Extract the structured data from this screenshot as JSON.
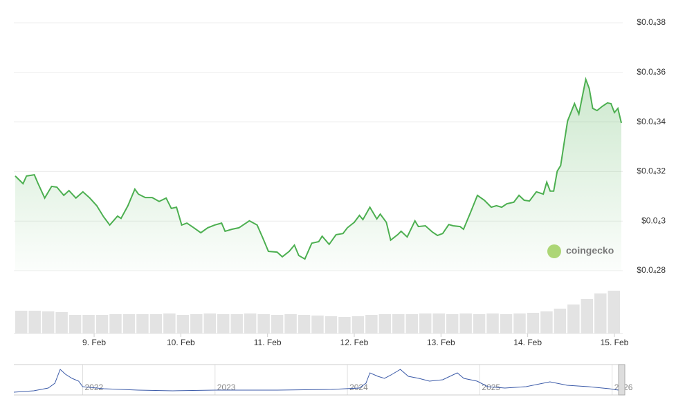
{
  "chart_data": [
    {
      "type": "area",
      "x": [
        8.09,
        8.18,
        8.22,
        8.31,
        8.35,
        8.43,
        8.51,
        8.57,
        8.65,
        8.71,
        8.79,
        8.87,
        8.95,
        9.03,
        9.11,
        9.18,
        9.27,
        9.31,
        9.39,
        9.47,
        9.51,
        9.59,
        9.67,
        9.75,
        9.83,
        9.89,
        9.95,
        10.01,
        10.07,
        10.15,
        10.23,
        10.31,
        10.39,
        10.47,
        10.51,
        10.59,
        10.67,
        10.79,
        10.88,
        10.95,
        11.01,
        11.11,
        11.17,
        11.25,
        11.31,
        11.36,
        11.43,
        11.51,
        11.59,
        11.63,
        11.71,
        11.79,
        11.87,
        11.92,
        12.0,
        12.06,
        12.1,
        12.18,
        12.26,
        12.3,
        12.37,
        12.42,
        12.5,
        12.54,
        12.61,
        12.7,
        12.74,
        12.82,
        12.9,
        12.96,
        13.02,
        13.09,
        13.14,
        13.22,
        13.26,
        13.34,
        13.42,
        13.5,
        13.58,
        13.64,
        13.7,
        13.76,
        13.84,
        13.9,
        13.96,
        14.02,
        14.1,
        14.18,
        14.22,
        14.26,
        14.3,
        14.34,
        14.38,
        14.42,
        14.46,
        14.54,
        14.59,
        14.63,
        14.67,
        14.71,
        14.75,
        14.8,
        14.86,
        14.92,
        14.96,
        15.0,
        15.04,
        15.08
      ],
      "series": [
        {
          "color": "#4caf50",
          "values": [
            3.182e-05,
            3.151e-05,
            3.182e-05,
            3.187e-05,
            3.154e-05,
            3.093e-05,
            3.14e-05,
            3.137e-05,
            3.104e-05,
            3.123e-05,
            3.093e-05,
            3.118e-05,
            3.093e-05,
            3.062e-05,
            3.017e-05,
            2.984e-05,
            3.02e-05,
            3.011e-05,
            3.062e-05,
            3.129e-05,
            3.109e-05,
            3.095e-05,
            3.095e-05,
            3.079e-05,
            3.093e-05,
            3.051e-05,
            3.056e-05,
            2.984e-05,
            2.992e-05,
            2.973e-05,
            2.953e-05,
            2.973e-05,
            2.984e-05,
            2.992e-05,
            2.959e-05,
            2.967e-05,
            2.973e-05,
            3.001e-05,
            2.984e-05,
            2.928e-05,
            2.878e-05,
            2.875e-05,
            2.856e-05,
            2.878e-05,
            2.903e-05,
            2.861e-05,
            2.847e-05,
            2.911e-05,
            2.917e-05,
            2.939e-05,
            2.906e-05,
            2.945e-05,
            2.95e-05,
            2.973e-05,
            2.995e-05,
            3.023e-05,
            3.006e-05,
            3.056e-05,
            3.009e-05,
            3.028e-05,
            2.995e-05,
            2.923e-05,
            2.945e-05,
            2.959e-05,
            2.936e-05,
            3.001e-05,
            2.978e-05,
            2.981e-05,
            2.956e-05,
            2.942e-05,
            2.95e-05,
            2.986e-05,
            2.981e-05,
            2.978e-05,
            2.967e-05,
            3.034e-05,
            3.104e-05,
            3.084e-05,
            3.056e-05,
            3.062e-05,
            3.056e-05,
            3.07e-05,
            3.076e-05,
            3.104e-05,
            3.084e-05,
            3.081e-05,
            3.118e-05,
            3.109e-05,
            3.157e-05,
            3.121e-05,
            3.121e-05,
            3.201e-05,
            3.224e-05,
            3.315e-05,
            3.404e-05,
            3.474e-05,
            3.432e-05,
            3.502e-05,
            3.572e-05,
            3.535e-05,
            3.455e-05,
            3.446e-05,
            3.463e-05,
            3.477e-05,
            3.474e-05,
            3.438e-05,
            3.455e-05,
            3.396e-05
          ]
        }
      ],
      "xlim": [
        8.09,
        15.08
      ],
      "xticks": [
        {
          "value": 9,
          "label": "9. Feb"
        },
        {
          "value": 10,
          "label": "10. Feb"
        },
        {
          "value": 11,
          "label": "11. Feb"
        },
        {
          "value": 12,
          "label": "12. Feb"
        },
        {
          "value": 13,
          "label": "13. Feb"
        },
        {
          "value": 14,
          "label": "14. Feb"
        },
        {
          "value": 15,
          "label": "15. Feb"
        }
      ],
      "ylim": [
        2.79e-05,
        3.8e-05
      ],
      "yticks": [
        {
          "value": 2.8e-05,
          "label": "$0.0₄28"
        },
        {
          "value": 3e-05,
          "label": "$0.0₄3"
        },
        {
          "value": 3.2e-05,
          "label": "$0.0₄32"
        },
        {
          "value": 3.4e-05,
          "label": "$0.0₄34"
        },
        {
          "value": 3.6e-05,
          "label": "$0.0₄36"
        },
        {
          "value": 3.8e-05,
          "label": "$0.0₄38"
        }
      ],
      "grid": true,
      "watermark": "coingecko",
      "volume": {
        "color": "#e3e3e3",
        "ylim": [
          0,
          80
        ],
        "values": [
          33,
          33,
          32,
          31,
          27,
          27,
          27,
          28,
          28,
          28,
          28,
          29,
          27,
          28,
          29,
          28,
          28,
          29,
          28,
          27,
          28,
          27,
          26,
          25,
          24,
          25,
          27,
          28,
          28,
          28,
          29,
          29,
          28,
          29,
          28,
          29,
          28,
          29,
          30,
          32,
          36,
          42,
          50,
          58,
          62
        ]
      }
    },
    {
      "type": "line",
      "x": [
        2021.48,
        2021.63,
        2021.74,
        2021.79,
        2021.83,
        2021.87,
        2021.92,
        2021.97,
        2022.0,
        2022.16,
        2022.42,
        2022.68,
        2023.0,
        2023.47,
        2023.88,
        2024.09,
        2024.14,
        2024.17,
        2024.23,
        2024.28,
        2024.33,
        2024.4,
        2024.46,
        2024.54,
        2024.62,
        2024.72,
        2024.83,
        2024.88,
        2024.98,
        2025.06,
        2025.19,
        2025.35,
        2025.53,
        2025.66,
        2025.82,
        2025.98,
        2026.08
      ],
      "series": [
        {
          "color": "#3b5aa8",
          "values": [
            2,
            4,
            8,
            15,
            35,
            28,
            22,
            18,
            10,
            7,
            5,
            4,
            5,
            5,
            6,
            8,
            15,
            30,
            25,
            22,
            27,
            35,
            25,
            22,
            18,
            20,
            30,
            22,
            18,
            10,
            8,
            10,
            17,
            12,
            10,
            7,
            4
          ]
        }
      ],
      "xlim": [
        2021.48,
        2026.08
      ],
      "ylim": [
        0,
        40
      ],
      "xticks": [
        {
          "value": 2022,
          "label": "2022"
        },
        {
          "value": 2023,
          "label": "2023"
        },
        {
          "value": 2024,
          "label": "2024"
        },
        {
          "value": 2025,
          "label": "2025"
        },
        {
          "value": 2026,
          "label": "2026"
        }
      ]
    }
  ]
}
